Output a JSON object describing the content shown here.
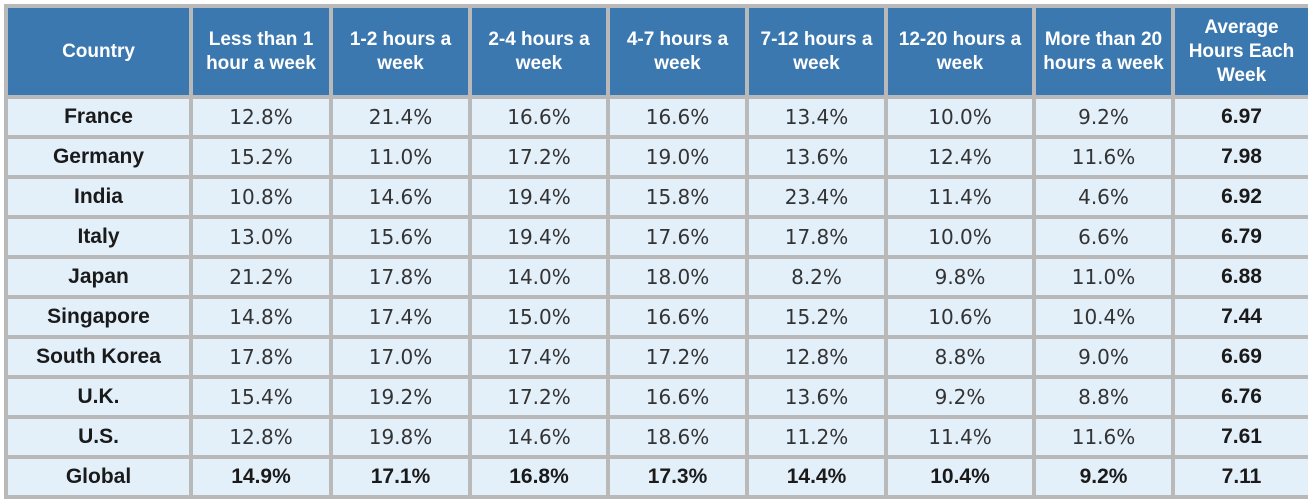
{
  "chart_data": {
    "type": "table",
    "columns": [
      "Country",
      "Less than 1 hour a week",
      "1-2 hours a week",
      "2-4 hours a week",
      "4-7 hours a week",
      "7-12 hours a week",
      "12-20 hours a week",
      "More than 20 hours a week",
      "Average Hours Each Week"
    ],
    "rows": [
      {
        "country": "France",
        "cells": [
          "12.8%",
          "21.4%",
          "16.6%",
          "16.6%",
          "13.4%",
          "10.0%",
          "9.2%"
        ],
        "avg": "6.97"
      },
      {
        "country": "Germany",
        "cells": [
          "15.2%",
          "11.0%",
          "17.2%",
          "19.0%",
          "13.6%",
          "12.4%",
          "11.6%"
        ],
        "avg": "7.98"
      },
      {
        "country": "India",
        "cells": [
          "10.8%",
          "14.6%",
          "19.4%",
          "15.8%",
          "23.4%",
          "11.4%",
          "4.6%"
        ],
        "avg": "6.92"
      },
      {
        "country": "Italy",
        "cells": [
          "13.0%",
          "15.6%",
          "19.4%",
          "17.6%",
          "17.8%",
          "10.0%",
          "6.6%"
        ],
        "avg": "6.79"
      },
      {
        "country": "Japan",
        "cells": [
          "21.2%",
          "17.8%",
          "14.0%",
          "18.0%",
          "8.2%",
          "9.8%",
          "11.0%"
        ],
        "avg": "6.88"
      },
      {
        "country": "Singapore",
        "cells": [
          "14.8%",
          "17.4%",
          "15.0%",
          "16.6%",
          "15.2%",
          "10.6%",
          "10.4%"
        ],
        "avg": "7.44"
      },
      {
        "country": "South Korea",
        "cells": [
          "17.8%",
          "17.0%",
          "17.4%",
          "17.2%",
          "12.8%",
          "8.8%",
          "9.0%"
        ],
        "avg": "6.69"
      },
      {
        "country": "U.K.",
        "cells": [
          "15.4%",
          "19.2%",
          "17.2%",
          "16.6%",
          "13.6%",
          "9.2%",
          "8.8%"
        ],
        "avg": "6.76"
      },
      {
        "country": "U.S.",
        "cells": [
          "12.8%",
          "19.8%",
          "14.6%",
          "18.6%",
          "11.2%",
          "11.4%",
          "11.6%"
        ],
        "avg": "7.61"
      },
      {
        "country": "Global",
        "cells": [
          "14.9%",
          "17.1%",
          "16.8%",
          "17.3%",
          "14.4%",
          "10.4%",
          "9.2%"
        ],
        "avg": "7.11"
      }
    ]
  },
  "colors": {
    "header_bg": "#3c78b0",
    "header_text": "#ffffff",
    "cell_bg": "#e3f0fa",
    "grid": "#b9b9b9"
  }
}
